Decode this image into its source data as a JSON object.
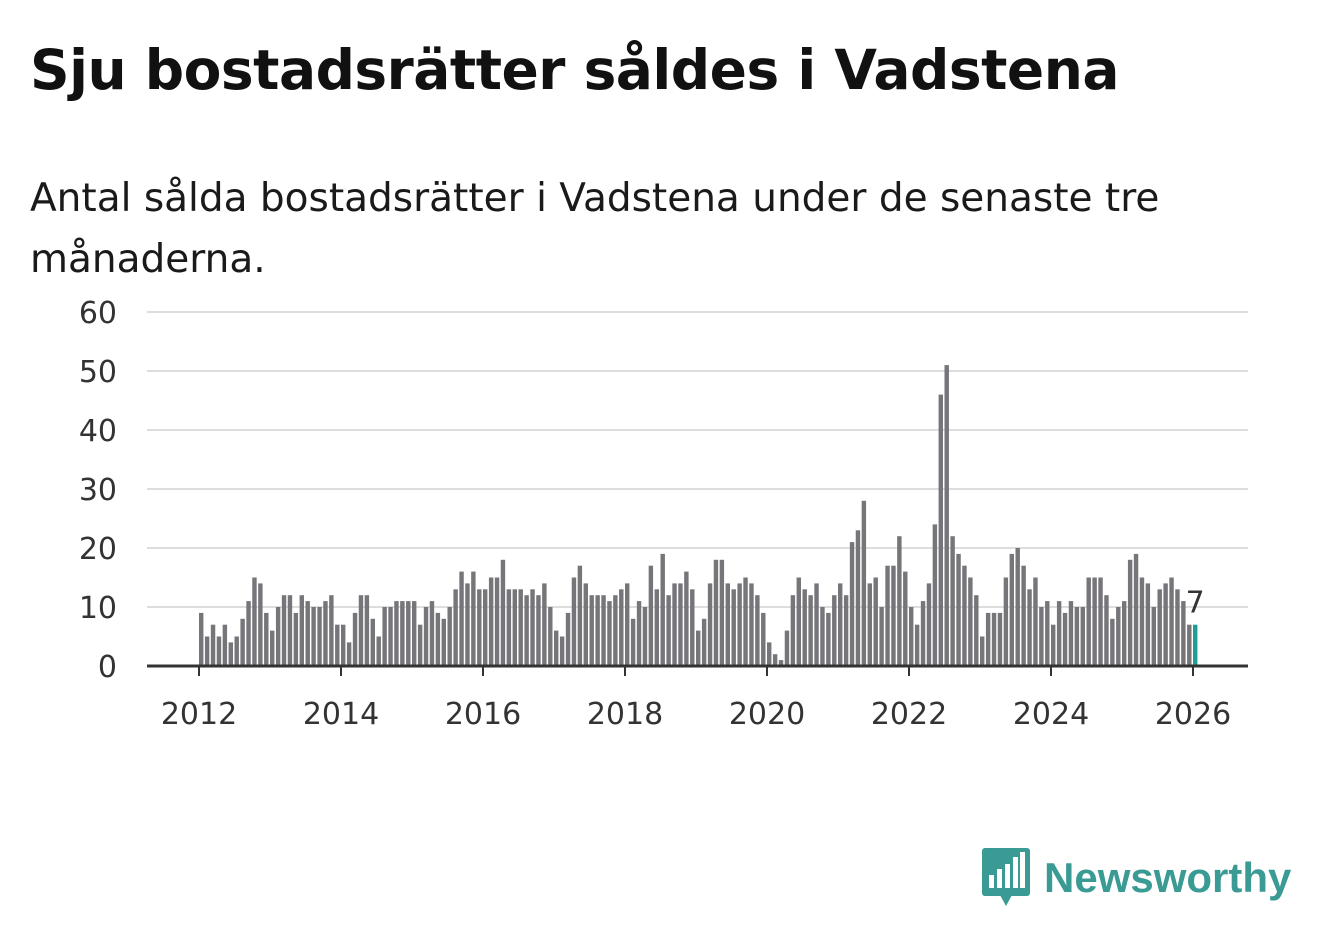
{
  "header": {
    "title": "Sju bostadsrätter såldes i Vadstena",
    "subtitle": "Antal sålda bostadsrätter i Vadstena under de senaste tre månaderna."
  },
  "chart_data": {
    "type": "bar",
    "title": "Sju bostadsrätter såldes i Vadstena",
    "subtitle": "Antal sålda bostadsrätter i Vadstena under de senaste tre månaderna.",
    "xlabel": "",
    "ylabel": "",
    "ylim": [
      0,
      60
    ],
    "yticks": [
      0,
      10,
      20,
      30,
      40,
      50,
      60
    ],
    "xticks": [
      "2012",
      "2014",
      "2016",
      "2018",
      "2020",
      "2022",
      "2024",
      "2026"
    ],
    "grid": true,
    "start_period": "2012-01",
    "period": "month",
    "values": [
      9,
      5,
      7,
      5,
      7,
      4,
      5,
      8,
      11,
      15,
      14,
      9,
      6,
      10,
      12,
      12,
      9,
      12,
      11,
      10,
      10,
      11,
      12,
      7,
      7,
      4,
      9,
      12,
      12,
      8,
      5,
      10,
      10,
      11,
      11,
      11,
      11,
      7,
      10,
      11,
      9,
      8,
      10,
      13,
      16,
      14,
      16,
      13,
      13,
      15,
      15,
      18,
      13,
      13,
      13,
      12,
      13,
      12,
      14,
      10,
      6,
      5,
      9,
      15,
      17,
      14,
      12,
      12,
      12,
      11,
      12,
      13,
      14,
      8,
      11,
      10,
      17,
      13,
      19,
      12,
      14,
      14,
      16,
      13,
      6,
      8,
      14,
      18,
      18,
      14,
      13,
      14,
      15,
      14,
      12,
      9,
      4,
      2,
      1,
      6,
      12,
      15,
      13,
      12,
      14,
      10,
      9,
      12,
      14,
      12,
      21,
      23,
      28,
      14,
      15,
      10,
      17,
      17,
      22,
      16,
      10,
      7,
      11,
      14,
      24,
      46,
      51,
      22,
      19,
      17,
      15,
      12,
      5,
      9,
      9,
      9,
      15,
      19,
      20,
      17,
      13,
      15,
      10,
      11,
      7,
      11,
      9,
      11,
      10,
      10,
      15,
      15,
      15,
      12,
      8,
      10,
      11,
      18,
      19,
      15,
      14,
      10,
      13,
      14,
      15,
      13,
      11,
      7,
      7
    ],
    "highlight": {
      "label": "7",
      "value": 7,
      "color": "#1f9e96"
    },
    "bar_color": "#76757a"
  },
  "brand": {
    "name": "Newsworthy",
    "icon": "newsworthy-logo-icon",
    "color": "#3a9a94"
  }
}
